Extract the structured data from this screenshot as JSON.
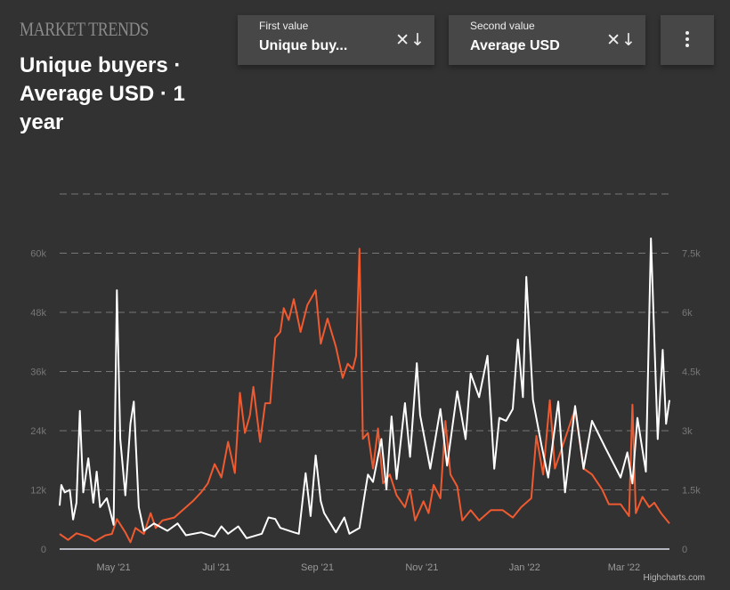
{
  "brand": "MARKET TRENDS",
  "heading": "Unique buyers · Average USD · 1 year",
  "selectors": [
    {
      "label": "First value",
      "value": "Unique buy...",
      "icons": [
        "close-icon",
        "arrow-down-icon"
      ]
    },
    {
      "label": "Second value",
      "value": "Average USD",
      "icons": [
        "close-icon",
        "arrow-down-icon"
      ]
    }
  ],
  "menu_icon": "more-vertical-icon",
  "credit": "Highcharts.com",
  "colors": {
    "background": "#323232",
    "series1": "#ffffff",
    "series2": "#f05a30",
    "grid": "#777777"
  },
  "chart_data": {
    "type": "line",
    "title": "Unique buyers · Average USD · 1 year",
    "x_unit": "day index",
    "xlim": [
      0,
      362
    ],
    "x_ticks": [
      {
        "label": "May '21",
        "x": 32
      },
      {
        "label": "Jul '21",
        "x": 93
      },
      {
        "label": "Sep '21",
        "x": 153
      },
      {
        "label": "Nov '21",
        "x": 215
      },
      {
        "label": "Jan '22",
        "x": 276
      },
      {
        "label": "Mar '22",
        "x": 335
      }
    ],
    "y_left": {
      "ticks": [
        "0",
        "12k",
        "24k",
        "36k",
        "48k",
        "60k"
      ],
      "values": [
        0,
        12000,
        24000,
        36000,
        48000,
        60000
      ],
      "ylim": [
        0,
        72000
      ]
    },
    "y_right": {
      "ticks": [
        "0",
        "1.5k",
        "3k",
        "4.5k",
        "6k",
        "7.5k"
      ],
      "values": [
        0,
        1500,
        3000,
        4500,
        6000,
        7500
      ],
      "ylim": [
        0,
        9000
      ]
    },
    "grid": true,
    "series": [
      {
        "name": "Unique buyers",
        "axis": "left",
        "color": "#ffffff",
        "points": [
          [
            0,
            8800
          ],
          [
            1,
            13000
          ],
          [
            3,
            11500
          ],
          [
            6,
            12000
          ],
          [
            8,
            6000
          ],
          [
            10,
            9400
          ],
          [
            12,
            28000
          ],
          [
            14,
            11500
          ],
          [
            17,
            18400
          ],
          [
            20,
            9400
          ],
          [
            22,
            15700
          ],
          [
            24,
            8500
          ],
          [
            28,
            10300
          ],
          [
            32,
            4900
          ],
          [
            34,
            52500
          ],
          [
            36,
            22300
          ],
          [
            39,
            10900
          ],
          [
            42,
            25400
          ],
          [
            44,
            29900
          ],
          [
            47,
            8500
          ],
          [
            50,
            3700
          ],
          [
            56,
            5200
          ],
          [
            64,
            3700
          ],
          [
            70,
            5200
          ],
          [
            75,
            2800
          ],
          [
            84,
            3400
          ],
          [
            92,
            2500
          ],
          [
            96,
            4600
          ],
          [
            100,
            3100
          ],
          [
            106,
            4600
          ],
          [
            111,
            2200
          ],
          [
            120,
            3100
          ],
          [
            124,
            6400
          ],
          [
            128,
            6100
          ],
          [
            131,
            4300
          ],
          [
            139,
            3400
          ],
          [
            142,
            3100
          ],
          [
            146,
            15400
          ],
          [
            149,
            6700
          ],
          [
            152,
            19000
          ],
          [
            155,
            9700
          ],
          [
            157,
            7300
          ],
          [
            164,
            3400
          ],
          [
            169,
            6400
          ],
          [
            172,
            3100
          ],
          [
            178,
            4300
          ],
          [
            181,
            10900
          ],
          [
            183,
            15100
          ],
          [
            186,
            13600
          ],
          [
            191,
            22300
          ],
          [
            194,
            12100
          ],
          [
            197,
            26900
          ],
          [
            200,
            14200
          ],
          [
            205,
            29600
          ],
          [
            208,
            18700
          ],
          [
            212,
            37700
          ],
          [
            214,
            27200
          ],
          [
            220,
            16300
          ],
          [
            226,
            28400
          ],
          [
            230,
            16900
          ],
          [
            236,
            32000
          ],
          [
            241,
            22300
          ],
          [
            244,
            35600
          ],
          [
            249,
            30800
          ],
          [
            254,
            39200
          ],
          [
            258,
            16300
          ],
          [
            261,
            26600
          ],
          [
            265,
            26000
          ],
          [
            269,
            28400
          ],
          [
            272,
            42500
          ],
          [
            275,
            30800
          ],
          [
            277,
            55200
          ],
          [
            281,
            30200
          ],
          [
            286,
            21100
          ],
          [
            290,
            14500
          ],
          [
            296,
            29900
          ],
          [
            300,
            11500
          ],
          [
            306,
            29000
          ],
          [
            311,
            16300
          ],
          [
            316,
            26000
          ],
          [
            324,
            20500
          ],
          [
            333,
            14500
          ],
          [
            337,
            19600
          ],
          [
            340,
            13300
          ],
          [
            343,
            26600
          ],
          [
            348,
            15700
          ],
          [
            351,
            63000
          ],
          [
            355,
            22300
          ],
          [
            358,
            40400
          ],
          [
            360,
            25400
          ],
          [
            362,
            30200
          ]
        ]
      },
      {
        "name": "Average USD",
        "axis": "right",
        "color": "#f05a30",
        "points": [
          [
            0,
            384
          ],
          [
            5,
            233
          ],
          [
            10,
            400
          ],
          [
            17,
            309
          ],
          [
            21,
            196
          ],
          [
            27,
            346
          ],
          [
            31,
            384
          ],
          [
            34,
            760
          ],
          [
            39,
            422
          ],
          [
            42,
            173
          ],
          [
            45,
            535
          ],
          [
            50,
            384
          ],
          [
            54,
            911
          ],
          [
            57,
            535
          ],
          [
            61,
            723
          ],
          [
            68,
            798
          ],
          [
            74,
            1024
          ],
          [
            79,
            1212
          ],
          [
            84,
            1438
          ],
          [
            88,
            1664
          ],
          [
            92,
            2154
          ],
          [
            96,
            1815
          ],
          [
            100,
            2718
          ],
          [
            104,
            1928
          ],
          [
            107,
            3961
          ],
          [
            110,
            2944
          ],
          [
            113,
            3396
          ],
          [
            115,
            4111
          ],
          [
            119,
            2718
          ],
          [
            122,
            3697
          ],
          [
            125,
            3697
          ],
          [
            128,
            5354
          ],
          [
            131,
            5504
          ],
          [
            133,
            6107
          ],
          [
            136,
            5806
          ],
          [
            139,
            6333
          ],
          [
            143,
            5504
          ],
          [
            147,
            6182
          ],
          [
            152,
            6559
          ],
          [
            155,
            5203
          ],
          [
            159,
            5843
          ],
          [
            164,
            5128
          ],
          [
            168,
            4337
          ],
          [
            171,
            4699
          ],
          [
            174,
            4563
          ],
          [
            176,
            4902
          ],
          [
            178,
            7613
          ],
          [
            180,
            2794
          ],
          [
            183,
            2944
          ],
          [
            186,
            2041
          ],
          [
            189,
            3057
          ],
          [
            192,
            1664
          ],
          [
            196,
            1890
          ],
          [
            200,
            1363
          ],
          [
            205,
            1062
          ],
          [
            208,
            1513
          ],
          [
            211,
            723
          ],
          [
            216,
            1212
          ],
          [
            219,
            911
          ],
          [
            222,
            1626
          ],
          [
            226,
            1288
          ],
          [
            229,
            3245
          ],
          [
            232,
            1890
          ],
          [
            236,
            1589
          ],
          [
            239,
            723
          ],
          [
            244,
            986
          ],
          [
            249,
            723
          ],
          [
            256,
            986
          ],
          [
            263,
            986
          ],
          [
            269,
            798
          ],
          [
            274,
            1062
          ],
          [
            280,
            1288
          ],
          [
            283,
            2869
          ],
          [
            287,
            1890
          ],
          [
            291,
            3773
          ],
          [
            294,
            2041
          ],
          [
            300,
            2794
          ],
          [
            306,
            3547
          ],
          [
            311,
            2041
          ],
          [
            316,
            1890
          ],
          [
            322,
            1513
          ],
          [
            326,
            1137
          ],
          [
            333,
            1137
          ],
          [
            338,
            836
          ],
          [
            340,
            3660
          ],
          [
            342,
            911
          ],
          [
            346,
            1325
          ],
          [
            350,
            1062
          ],
          [
            353,
            1175
          ],
          [
            357,
            911
          ],
          [
            362,
            648
          ]
        ]
      }
    ]
  }
}
